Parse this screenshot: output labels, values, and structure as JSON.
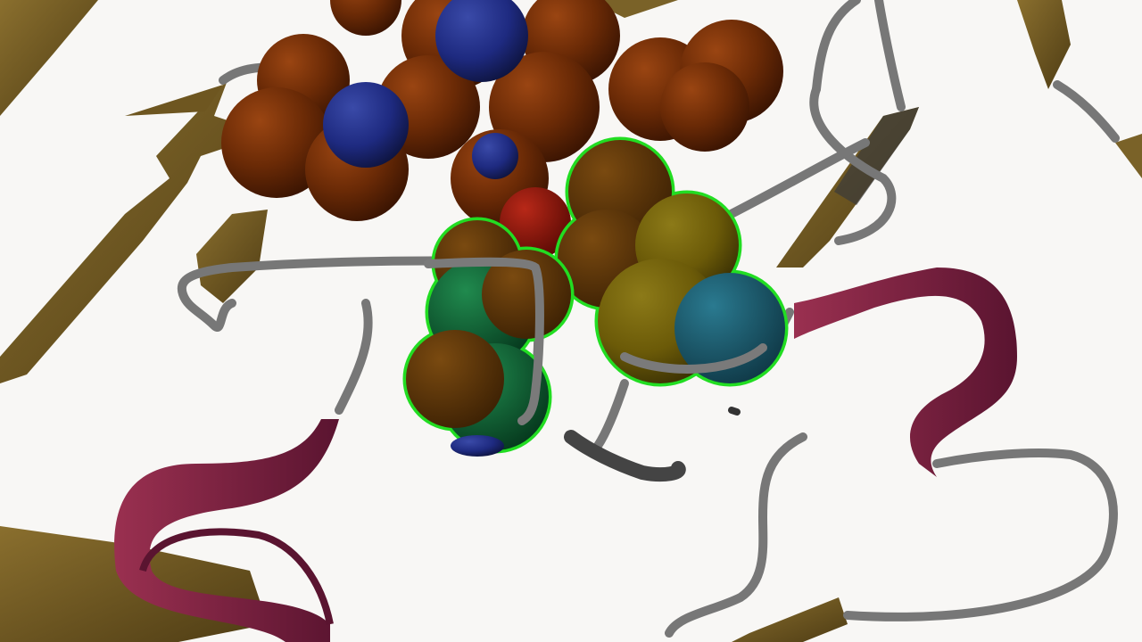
{
  "scene": {
    "kind": "molecular-structure-render",
    "background": "#f8f7f5",
    "ligand_count": 3,
    "highlighted_ligand_count": 2
  },
  "palette": {
    "strand": "#5e4a1c",
    "strand_light": "#8a6f2e",
    "helix": "#7a2040",
    "helix_light": "#9a3050",
    "coil": "#777777",
    "carbon_heme": "#6a2a06",
    "nitrogen": "#1e2a80",
    "oxygen": "#8a1208",
    "carbon_ligand": "#6b5a08",
    "nitrogen_ligand": "#1a5a70",
    "green_atom": "#106b3a",
    "selection_outline": "#22dd22"
  }
}
